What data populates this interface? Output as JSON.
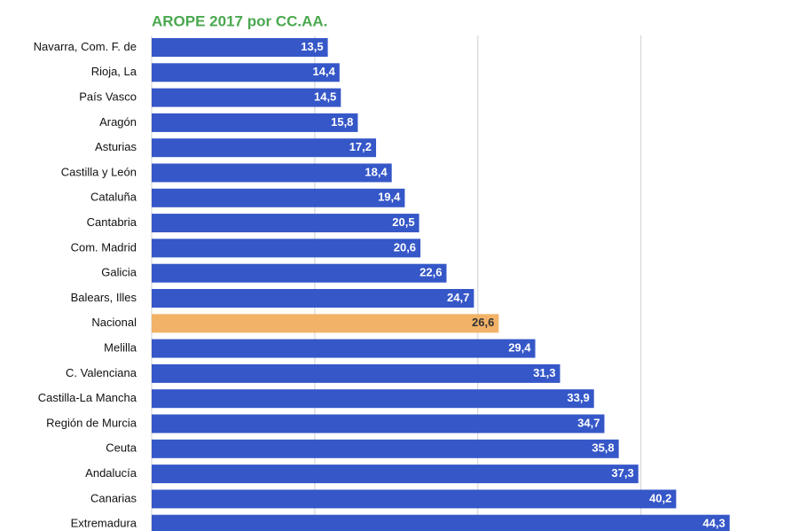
{
  "chart_data": {
    "type": "bar",
    "orientation": "horizontal",
    "title": "AROPE 2017 por CC.AA.",
    "categories": [
      "Navarra, Com. F. de",
      "Rioja, La",
      "País Vasco",
      "Aragón",
      "Asturias",
      "Castilla y León",
      "Cataluña",
      "Cantabria",
      "Com. Madrid",
      "Galicia",
      "Balears, Illes",
      "Nacional",
      "Melilla",
      "C. Valenciana",
      "Castilla-La Mancha",
      "Región de Murcia",
      "Ceuta",
      "Andalucía",
      "Canarias",
      "Extremadura"
    ],
    "values": [
      13.5,
      14.4,
      14.5,
      15.8,
      17.2,
      18.4,
      19.4,
      20.5,
      20.6,
      22.6,
      24.7,
      26.6,
      29.4,
      31.3,
      33.9,
      34.7,
      35.8,
      37.3,
      40.2,
      44.3
    ],
    "value_labels": [
      "13,5",
      "14,4",
      "14,5",
      "15,8",
      "17,2",
      "18,4",
      "19,4",
      "20,5",
      "20,6",
      "22,6",
      "24,7",
      "26,6",
      "29,4",
      "31,3",
      "33,9",
      "34,7",
      "35,8",
      "37,3",
      "40,2",
      "44,3"
    ],
    "colors": [
      "#3557c8",
      "#3557c8",
      "#3557c8",
      "#3557c8",
      "#3557c8",
      "#3557c8",
      "#3557c8",
      "#3557c8",
      "#3557c8",
      "#3557c8",
      "#3557c8",
      "#f2b267",
      "#3557c8",
      "#3557c8",
      "#3557c8",
      "#3557c8",
      "#3557c8",
      "#3557c8",
      "#3557c8",
      "#3557c8"
    ],
    "xlim": [
      0,
      45
    ],
    "xticks": [
      0,
      12.5,
      25,
      37.5
    ],
    "grid": true
  }
}
